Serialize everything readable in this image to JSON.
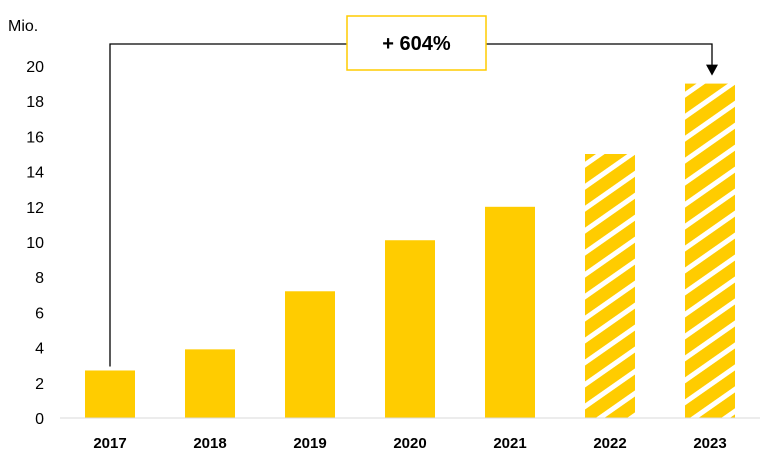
{
  "chart_data": {
    "type": "bar",
    "unit_label": "Mio.",
    "categories": [
      "2017",
      "2018",
      "2019",
      "2020",
      "2021",
      "2022",
      "2023"
    ],
    "values": [
      2.7,
      3.9,
      7.2,
      10.1,
      12.0,
      15.0,
      19.0
    ],
    "projected": [
      false,
      false,
      false,
      false,
      false,
      true,
      true
    ],
    "ylim": [
      0,
      20
    ],
    "yticks": [
      "0",
      "2",
      "4",
      "6",
      "8",
      "10",
      "12",
      "14",
      "16",
      "18",
      "20"
    ],
    "grid": false,
    "legend": "none",
    "annotation": {
      "text": "+ 604%",
      "from_category": "2017",
      "to_category": "2023"
    },
    "colors": {
      "bar": "#FFCC00",
      "stripe": "#FFFFFF",
      "annotation_border": "#FFCC00",
      "line": "#000000"
    }
  }
}
